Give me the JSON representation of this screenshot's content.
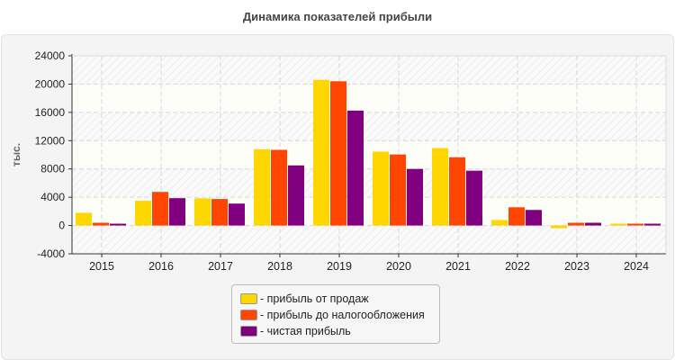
{
  "chart_data": {
    "type": "bar",
    "title": "Динамика показателей прибыли",
    "xlabel": "",
    "ylabel": "тыс.",
    "ylim": [
      -4000,
      24000
    ],
    "yticks": [
      -4000,
      0,
      4000,
      8000,
      12000,
      16000,
      20000,
      24000
    ],
    "ytick_labels": [
      "-4000",
      "0",
      "4000",
      "8000",
      "12000",
      "16000",
      "20000",
      "24000"
    ],
    "grid": true,
    "legend_position": "bottom",
    "categories": [
      "2015",
      "2016",
      "2017",
      "2018",
      "2019",
      "2020",
      "2021",
      "2022",
      "2023",
      "2024"
    ],
    "series": [
      {
        "name": "- прибыль от продаж",
        "color": "#FFD700",
        "values": [
          1800,
          3500,
          3850,
          10800,
          20600,
          10450,
          10950,
          780,
          -380,
          260
        ]
      },
      {
        "name": "- прибыль до налогообложения",
        "color": "#FF4500",
        "values": [
          390,
          4750,
          3750,
          10700,
          20400,
          10050,
          9650,
          2580,
          390,
          260
        ]
      },
      {
        "name": "- чистая прибыль",
        "color": "#800080",
        "values": [
          260,
          3870,
          3100,
          8500,
          16250,
          8000,
          7750,
          2200,
          390,
          260
        ]
      }
    ]
  }
}
